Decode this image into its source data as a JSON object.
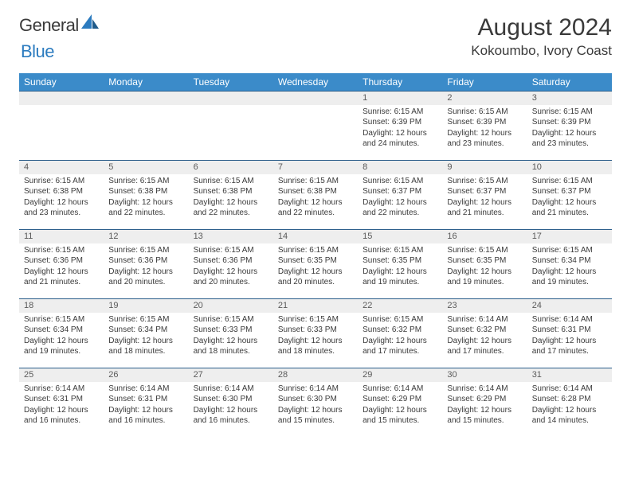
{
  "logo": {
    "text1": "General",
    "text2": "Blue"
  },
  "title": "August 2024",
  "location": "Kokoumbo, Ivory Coast",
  "colors": {
    "header_bg": "#3b8bc9",
    "header_fg": "#ffffff",
    "daynum_bg": "#eeeeee",
    "border": "#2a5d8a",
    "text": "#3a3a3a",
    "logo_blue": "#2b7bbf"
  },
  "dayHeaders": [
    "Sunday",
    "Monday",
    "Tuesday",
    "Wednesday",
    "Thursday",
    "Friday",
    "Saturday"
  ],
  "weeks": [
    [
      {
        "num": "",
        "lines": []
      },
      {
        "num": "",
        "lines": []
      },
      {
        "num": "",
        "lines": []
      },
      {
        "num": "",
        "lines": []
      },
      {
        "num": "1",
        "lines": [
          "Sunrise: 6:15 AM",
          "Sunset: 6:39 PM",
          "Daylight: 12 hours and 24 minutes."
        ]
      },
      {
        "num": "2",
        "lines": [
          "Sunrise: 6:15 AM",
          "Sunset: 6:39 PM",
          "Daylight: 12 hours and 23 minutes."
        ]
      },
      {
        "num": "3",
        "lines": [
          "Sunrise: 6:15 AM",
          "Sunset: 6:39 PM",
          "Daylight: 12 hours and 23 minutes."
        ]
      }
    ],
    [
      {
        "num": "4",
        "lines": [
          "Sunrise: 6:15 AM",
          "Sunset: 6:38 PM",
          "Daylight: 12 hours and 23 minutes."
        ]
      },
      {
        "num": "5",
        "lines": [
          "Sunrise: 6:15 AM",
          "Sunset: 6:38 PM",
          "Daylight: 12 hours and 22 minutes."
        ]
      },
      {
        "num": "6",
        "lines": [
          "Sunrise: 6:15 AM",
          "Sunset: 6:38 PM",
          "Daylight: 12 hours and 22 minutes."
        ]
      },
      {
        "num": "7",
        "lines": [
          "Sunrise: 6:15 AM",
          "Sunset: 6:38 PM",
          "Daylight: 12 hours and 22 minutes."
        ]
      },
      {
        "num": "8",
        "lines": [
          "Sunrise: 6:15 AM",
          "Sunset: 6:37 PM",
          "Daylight: 12 hours and 22 minutes."
        ]
      },
      {
        "num": "9",
        "lines": [
          "Sunrise: 6:15 AM",
          "Sunset: 6:37 PM",
          "Daylight: 12 hours and 21 minutes."
        ]
      },
      {
        "num": "10",
        "lines": [
          "Sunrise: 6:15 AM",
          "Sunset: 6:37 PM",
          "Daylight: 12 hours and 21 minutes."
        ]
      }
    ],
    [
      {
        "num": "11",
        "lines": [
          "Sunrise: 6:15 AM",
          "Sunset: 6:36 PM",
          "Daylight: 12 hours and 21 minutes."
        ]
      },
      {
        "num": "12",
        "lines": [
          "Sunrise: 6:15 AM",
          "Sunset: 6:36 PM",
          "Daylight: 12 hours and 20 minutes."
        ]
      },
      {
        "num": "13",
        "lines": [
          "Sunrise: 6:15 AM",
          "Sunset: 6:36 PM",
          "Daylight: 12 hours and 20 minutes."
        ]
      },
      {
        "num": "14",
        "lines": [
          "Sunrise: 6:15 AM",
          "Sunset: 6:35 PM",
          "Daylight: 12 hours and 20 minutes."
        ]
      },
      {
        "num": "15",
        "lines": [
          "Sunrise: 6:15 AM",
          "Sunset: 6:35 PM",
          "Daylight: 12 hours and 19 minutes."
        ]
      },
      {
        "num": "16",
        "lines": [
          "Sunrise: 6:15 AM",
          "Sunset: 6:35 PM",
          "Daylight: 12 hours and 19 minutes."
        ]
      },
      {
        "num": "17",
        "lines": [
          "Sunrise: 6:15 AM",
          "Sunset: 6:34 PM",
          "Daylight: 12 hours and 19 minutes."
        ]
      }
    ],
    [
      {
        "num": "18",
        "lines": [
          "Sunrise: 6:15 AM",
          "Sunset: 6:34 PM",
          "Daylight: 12 hours and 19 minutes."
        ]
      },
      {
        "num": "19",
        "lines": [
          "Sunrise: 6:15 AM",
          "Sunset: 6:34 PM",
          "Daylight: 12 hours and 18 minutes."
        ]
      },
      {
        "num": "20",
        "lines": [
          "Sunrise: 6:15 AM",
          "Sunset: 6:33 PM",
          "Daylight: 12 hours and 18 minutes."
        ]
      },
      {
        "num": "21",
        "lines": [
          "Sunrise: 6:15 AM",
          "Sunset: 6:33 PM",
          "Daylight: 12 hours and 18 minutes."
        ]
      },
      {
        "num": "22",
        "lines": [
          "Sunrise: 6:15 AM",
          "Sunset: 6:32 PM",
          "Daylight: 12 hours and 17 minutes."
        ]
      },
      {
        "num": "23",
        "lines": [
          "Sunrise: 6:14 AM",
          "Sunset: 6:32 PM",
          "Daylight: 12 hours and 17 minutes."
        ]
      },
      {
        "num": "24",
        "lines": [
          "Sunrise: 6:14 AM",
          "Sunset: 6:31 PM",
          "Daylight: 12 hours and 17 minutes."
        ]
      }
    ],
    [
      {
        "num": "25",
        "lines": [
          "Sunrise: 6:14 AM",
          "Sunset: 6:31 PM",
          "Daylight: 12 hours and 16 minutes."
        ]
      },
      {
        "num": "26",
        "lines": [
          "Sunrise: 6:14 AM",
          "Sunset: 6:31 PM",
          "Daylight: 12 hours and 16 minutes."
        ]
      },
      {
        "num": "27",
        "lines": [
          "Sunrise: 6:14 AM",
          "Sunset: 6:30 PM",
          "Daylight: 12 hours and 16 minutes."
        ]
      },
      {
        "num": "28",
        "lines": [
          "Sunrise: 6:14 AM",
          "Sunset: 6:30 PM",
          "Daylight: 12 hours and 15 minutes."
        ]
      },
      {
        "num": "29",
        "lines": [
          "Sunrise: 6:14 AM",
          "Sunset: 6:29 PM",
          "Daylight: 12 hours and 15 minutes."
        ]
      },
      {
        "num": "30",
        "lines": [
          "Sunrise: 6:14 AM",
          "Sunset: 6:29 PM",
          "Daylight: 12 hours and 15 minutes."
        ]
      },
      {
        "num": "31",
        "lines": [
          "Sunrise: 6:14 AM",
          "Sunset: 6:28 PM",
          "Daylight: 12 hours and 14 minutes."
        ]
      }
    ]
  ]
}
